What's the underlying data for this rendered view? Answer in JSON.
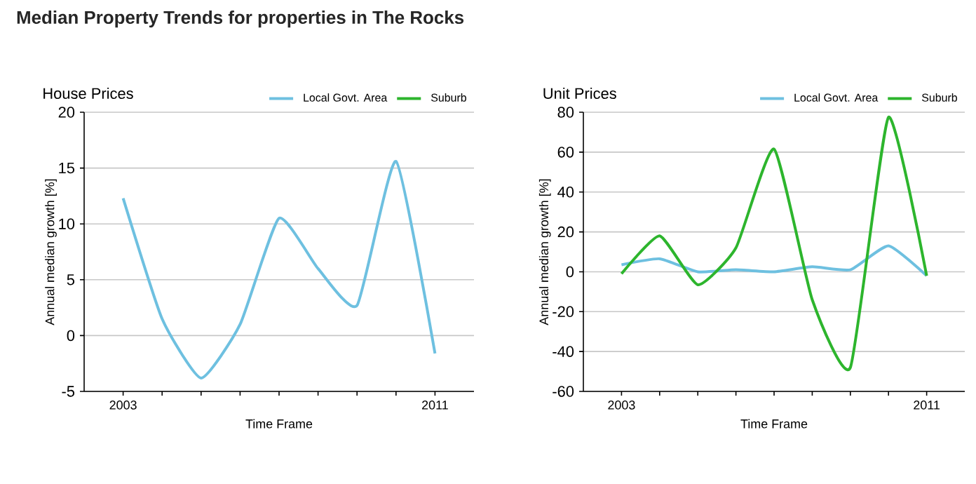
{
  "chart_data": [
    {
      "type": "line",
      "title": "Median Property Trends for properties in The Rocks",
      "subtitle": "House Prices",
      "xlabel": "Time Frame",
      "ylabel": "Annual median growth [%]",
      "x": [
        2003,
        2004,
        2005,
        2006,
        2007,
        2008,
        2009,
        2010,
        2011
      ],
      "series": [
        {
          "name": "Local Govt. Area",
          "color": "#6ec0e0",
          "values": [
            12.3,
            1.5,
            -3.8,
            1,
            10.5,
            6,
            2.7,
            15.6,
            -1.6
          ]
        },
        {
          "name": "Suburb",
          "color": "#2db52d",
          "values": [
            null,
            null,
            null,
            null,
            null,
            null,
            null,
            null,
            null
          ]
        }
      ],
      "xlim": [
        2002,
        2012
      ],
      "xticks": [
        2003,
        {
          "value": 2004,
          "label": null
        },
        {
          "value": 2005,
          "label": null
        },
        {
          "value": 2006,
          "label": null
        },
        {
          "value": 2007,
          "label": null
        },
        {
          "value": 2008,
          "label": null
        },
        {
          "value": 2009,
          "label": null
        },
        {
          "value": 2010,
          "label": null
        },
        2011
      ],
      "ylim": [
        -5,
        20
      ],
      "yticks": [
        -5,
        0,
        5,
        10,
        15,
        20
      ],
      "grid": "y",
      "legend": "top right",
      "marker": "none",
      "line_style": "solid"
    },
    {
      "type": "line",
      "subtitle": "Unit Prices",
      "xlabel": "Time Frame",
      "ylabel": "Annual median growth [%]",
      "x": [
        2003,
        2004,
        2005,
        2006,
        2007,
        2008,
        2009,
        2010,
        2011
      ],
      "series": [
        {
          "name": "Local Govt. Area",
          "color": "#6ec0e0",
          "values": [
            3.5,
            6.5,
            0,
            1,
            0,
            2.5,
            1,
            13,
            -2
          ]
        },
        {
          "name": "Suburb",
          "color": "#2db52d",
          "values": [
            -1,
            18,
            -6.5,
            12,
            61.5,
            -14,
            -48,
            77.5,
            -2
          ]
        }
      ],
      "xlim": [
        2002,
        2012
      ],
      "xticks": [
        2003,
        {
          "value": 2004,
          "label": null
        },
        {
          "value": 2005,
          "label": null
        },
        {
          "value": 2006,
          "label": null
        },
        {
          "value": 2007,
          "label": null
        },
        {
          "value": 2008,
          "label": null
        },
        {
          "value": 2009,
          "label": null
        },
        {
          "value": 2010,
          "label": null
        },
        2011
      ],
      "ylim": [
        -60,
        80
      ],
      "yticks": [
        -60,
        -40,
        -20,
        0,
        20,
        40,
        60,
        80
      ],
      "grid": "y",
      "legend": "top right",
      "marker": "none",
      "line_style": "solid"
    }
  ]
}
